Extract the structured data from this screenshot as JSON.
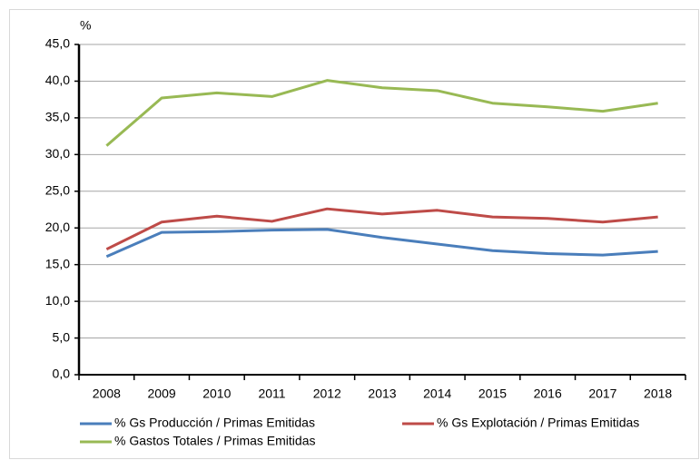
{
  "chart_data": {
    "type": "line",
    "y_label": "%",
    "categories": [
      "2008",
      "2009",
      "2010",
      "2011",
      "2012",
      "2013",
      "2014",
      "2015",
      "2016",
      "2017",
      "2018"
    ],
    "series": [
      {
        "name": "% Gs Producción / Primas Emitidas",
        "color": "#4a7ebb",
        "values": [
          16.1,
          19.4,
          19.5,
          19.7,
          19.8,
          18.7,
          17.8,
          16.9,
          16.5,
          16.3,
          16.8
        ]
      },
      {
        "name": "% Gs Explotación / Primas Emitidas",
        "color": "#be4b48",
        "values": [
          17.1,
          20.8,
          21.6,
          20.9,
          22.6,
          21.9,
          22.4,
          21.5,
          21.3,
          20.8,
          21.5
        ]
      },
      {
        "name": "% Gastos Totales / Primas Emitidas",
        "color": "#98b954",
        "values": [
          31.2,
          37.7,
          38.4,
          37.9,
          40.1,
          39.1,
          38.7,
          37.0,
          36.5,
          35.9,
          37.0
        ]
      }
    ],
    "ylim": [
      0,
      45
    ],
    "yticks": [
      {
        "value": 0,
        "label": "0,0"
      },
      {
        "value": 5,
        "label": "5,0"
      },
      {
        "value": 10,
        "label": "10,0"
      },
      {
        "value": 15,
        "label": "15,0"
      },
      {
        "value": 20,
        "label": "20,0"
      },
      {
        "value": 25,
        "label": "25,0"
      },
      {
        "value": 30,
        "label": "30,0"
      },
      {
        "value": 35,
        "label": "35,0"
      },
      {
        "value": 40,
        "label": "40,0"
      },
      {
        "value": 45,
        "label": "45,0"
      }
    ],
    "grid": true
  }
}
